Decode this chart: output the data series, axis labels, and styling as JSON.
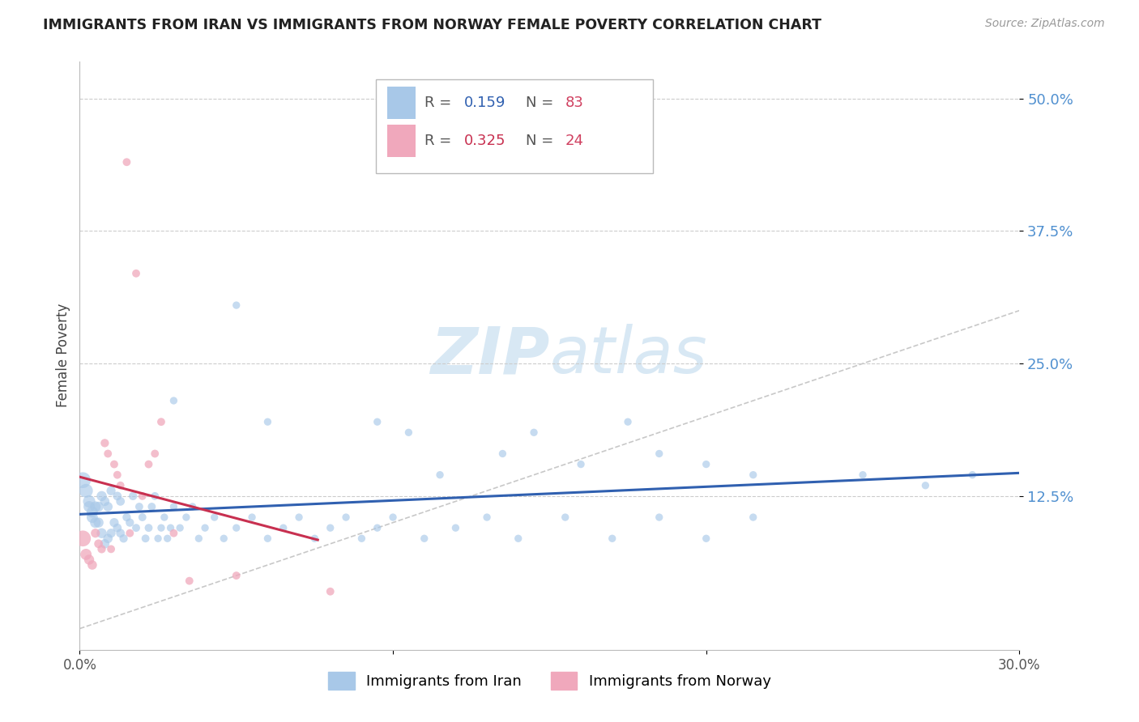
{
  "title": "IMMIGRANTS FROM IRAN VS IMMIGRANTS FROM NORWAY FEMALE POVERTY CORRELATION CHART",
  "source": "Source: ZipAtlas.com",
  "ylabel": "Female Poverty",
  "ytick_labels": [
    "50.0%",
    "37.5%",
    "25.0%",
    "12.5%"
  ],
  "ytick_values": [
    0.5,
    0.375,
    0.25,
    0.125
  ],
  "xmin": 0.0,
  "xmax": 0.3,
  "ymin": -0.02,
  "ymax": 0.535,
  "color_iran": "#A8C8E8",
  "color_norway": "#F0A8BC",
  "color_iran_line": "#3060B0",
  "color_norway_line": "#C83050",
  "color_diagonal": "#C8C8C8",
  "color_ytick": "#5090D0",
  "watermark_color": "#D8E8F4",
  "iran_x": [
    0.001,
    0.002,
    0.003,
    0.003,
    0.004,
    0.004,
    0.005,
    0.005,
    0.006,
    0.006,
    0.007,
    0.007,
    0.008,
    0.008,
    0.009,
    0.009,
    0.01,
    0.01,
    0.011,
    0.012,
    0.012,
    0.013,
    0.013,
    0.014,
    0.015,
    0.016,
    0.017,
    0.018,
    0.019,
    0.02,
    0.021,
    0.022,
    0.023,
    0.024,
    0.025,
    0.026,
    0.027,
    0.028,
    0.029,
    0.03,
    0.032,
    0.034,
    0.036,
    0.038,
    0.04,
    0.043,
    0.046,
    0.05,
    0.055,
    0.06,
    0.065,
    0.07,
    0.075,
    0.08,
    0.085,
    0.09,
    0.095,
    0.1,
    0.11,
    0.12,
    0.13,
    0.14,
    0.155,
    0.17,
    0.185,
    0.2,
    0.215,
    0.05,
    0.095,
    0.115,
    0.145,
    0.175,
    0.25,
    0.27,
    0.285,
    0.03,
    0.06,
    0.105,
    0.135,
    0.16,
    0.185,
    0.2,
    0.215
  ],
  "iran_y": [
    0.14,
    0.13,
    0.12,
    0.115,
    0.11,
    0.105,
    0.1,
    0.115,
    0.1,
    0.115,
    0.09,
    0.125,
    0.08,
    0.12,
    0.085,
    0.115,
    0.09,
    0.13,
    0.1,
    0.095,
    0.125,
    0.09,
    0.12,
    0.085,
    0.105,
    0.1,
    0.125,
    0.095,
    0.115,
    0.105,
    0.085,
    0.095,
    0.115,
    0.125,
    0.085,
    0.095,
    0.105,
    0.085,
    0.095,
    0.115,
    0.095,
    0.105,
    0.115,
    0.085,
    0.095,
    0.105,
    0.085,
    0.095,
    0.105,
    0.085,
    0.095,
    0.105,
    0.085,
    0.095,
    0.105,
    0.085,
    0.095,
    0.105,
    0.085,
    0.095,
    0.105,
    0.085,
    0.105,
    0.085,
    0.105,
    0.085,
    0.105,
    0.305,
    0.195,
    0.145,
    0.185,
    0.195,
    0.145,
    0.135,
    0.145,
    0.215,
    0.195,
    0.185,
    0.165,
    0.155,
    0.165,
    0.155,
    0.145
  ],
  "iran_size": [
    200,
    150,
    120,
    100,
    100,
    100,
    90,
    90,
    80,
    80,
    80,
    80,
    70,
    70,
    70,
    70,
    65,
    65,
    65,
    60,
    60,
    60,
    60,
    55,
    55,
    55,
    55,
    50,
    50,
    50,
    50,
    50,
    50,
    50,
    45,
    45,
    45,
    45,
    45,
    45,
    45,
    45,
    45,
    45,
    45,
    45,
    45,
    45,
    45,
    45,
    45,
    45,
    45,
    45,
    45,
    45,
    45,
    45,
    45,
    45,
    45,
    45,
    45,
    45,
    45,
    45,
    45,
    45,
    45,
    45,
    45,
    45,
    45,
    45,
    45,
    45,
    45,
    45,
    45,
    45,
    45,
    45,
    45
  ],
  "norway_x": [
    0.001,
    0.002,
    0.003,
    0.004,
    0.005,
    0.006,
    0.007,
    0.008,
    0.009,
    0.01,
    0.011,
    0.012,
    0.013,
    0.015,
    0.016,
    0.018,
    0.02,
    0.022,
    0.024,
    0.026,
    0.03,
    0.035,
    0.05,
    0.08
  ],
  "norway_y": [
    0.085,
    0.07,
    0.065,
    0.06,
    0.09,
    0.08,
    0.075,
    0.175,
    0.165,
    0.075,
    0.155,
    0.145,
    0.135,
    0.44,
    0.09,
    0.335,
    0.125,
    0.155,
    0.165,
    0.195,
    0.09,
    0.045,
    0.05,
    0.035
  ],
  "norway_size": [
    200,
    100,
    80,
    70,
    65,
    60,
    55,
    55,
    50,
    50,
    50,
    50,
    50,
    50,
    50,
    50,
    50,
    50,
    50,
    50,
    50,
    50,
    50,
    50
  ]
}
